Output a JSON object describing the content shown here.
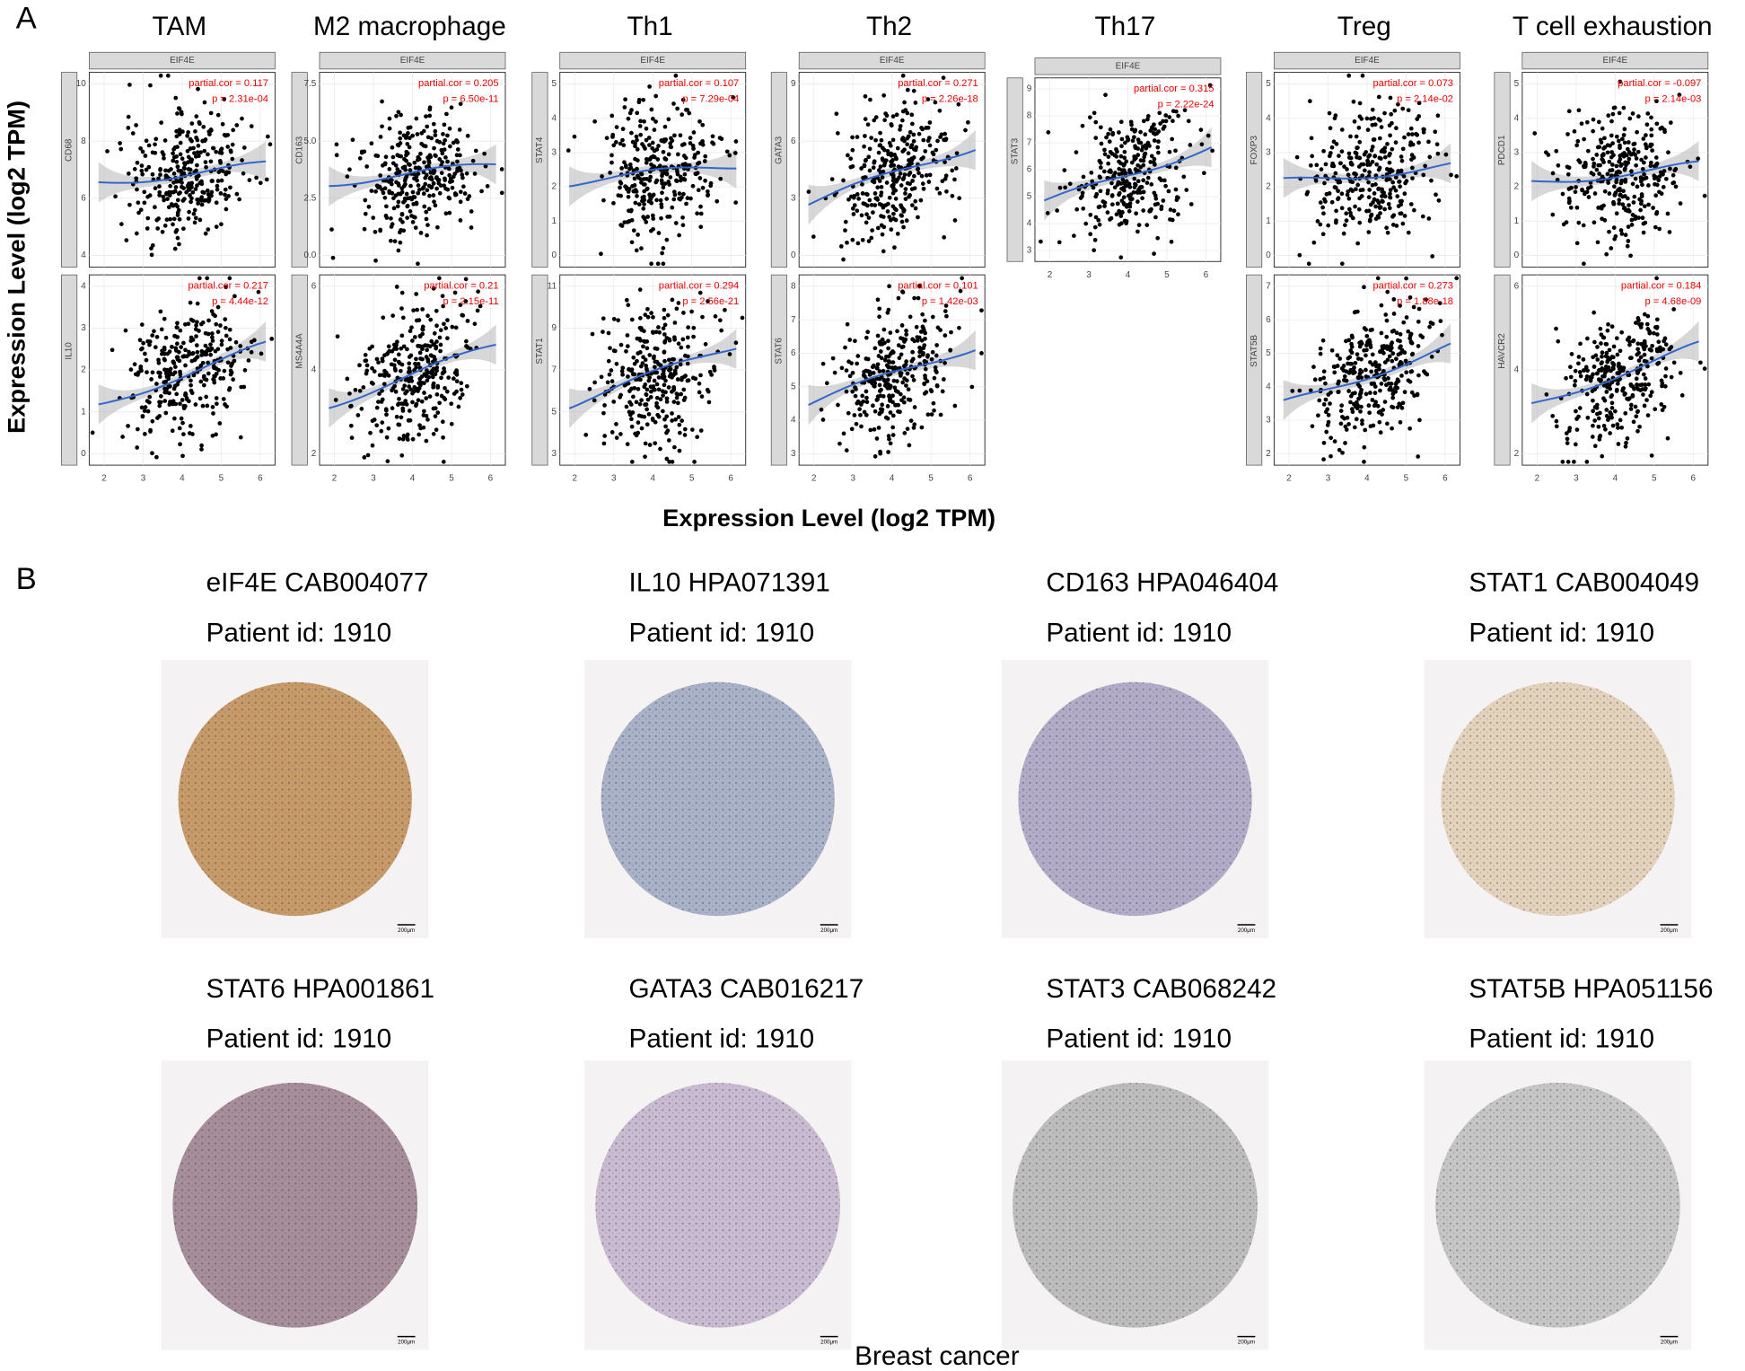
{
  "panel_a": {
    "label": "A",
    "y_axis_label": "Expression Level (log2 TPM)",
    "x_axis_label": "Expression Level (log2 TPM)",
    "strip": "EIF4E",
    "x_ticks": [
      "2",
      "3",
      "4",
      "5",
      "6"
    ],
    "groups": [
      {
        "title": "TAM",
        "plots": [
          {
            "gene": "CD68",
            "cor": "partial.cor = 0.117",
            "p": "p = 2.31e-04",
            "y_ticks": [
              "4",
              "6",
              "8",
              "10"
            ]
          },
          {
            "gene": "IL10",
            "cor": "partial.cor = 0.217",
            "p": "p = 4.44e-12",
            "y_ticks": [
              "0",
              "1",
              "2",
              "3",
              "4"
            ]
          }
        ]
      },
      {
        "title": "M2 macrophage",
        "plots": [
          {
            "gene": "CD163",
            "cor": "partial.cor = 0.205",
            "p": "p = 6.50e-11",
            "y_ticks": [
              "0.0",
              "2.5",
              "5.0",
              "7.5"
            ]
          },
          {
            "gene": "MS4A4A",
            "cor": "partial.cor = 0.21",
            "p": "p = 2.15e-11",
            "y_ticks": [
              "2",
              "4",
              "6"
            ]
          }
        ]
      },
      {
        "title": "Th1",
        "plots": [
          {
            "gene": "STAT4",
            "cor": "partial.cor = 0.107",
            "p": "p = 7.29e-04",
            "y_ticks": [
              "0",
              "1",
              "2",
              "3",
              "4",
              "5"
            ]
          },
          {
            "gene": "STAT1",
            "cor": "partial.cor = 0.294",
            "p": "p = 2.56e-21",
            "y_ticks": [
              "3",
              "5",
              "7",
              "9",
              "11"
            ]
          }
        ]
      },
      {
        "title": "Th2",
        "plots": [
          {
            "gene": "GATA3",
            "cor": "partial.cor = 0.271",
            "p": "p = 2.26e-18",
            "y_ticks": [
              "0",
              "3",
              "6",
              "9"
            ]
          },
          {
            "gene": "STAT6",
            "cor": "partial.cor = 0.101",
            "p": "p = 1.42e-03",
            "y_ticks": [
              "3",
              "4",
              "5",
              "6",
              "7",
              "8"
            ]
          }
        ]
      },
      {
        "title": "Th17",
        "plots": [
          {
            "gene": "STAT3",
            "cor": "partial.cor = 0.315",
            "p": "p = 2.22e-24",
            "y_ticks": [
              "3",
              "4",
              "5",
              "6",
              "7",
              "8",
              "9"
            ]
          }
        ]
      },
      {
        "title": "Treg",
        "plots": [
          {
            "gene": "FOXP3",
            "cor": "partial.cor = 0.073",
            "p": "p = 2.14e-02",
            "y_ticks": [
              "0",
              "1",
              "2",
              "3",
              "4",
              "5"
            ]
          },
          {
            "gene": "STAT5B",
            "cor": "partial.cor = 0.273",
            "p": "p = 1.88e-18",
            "y_ticks": [
              "2",
              "3",
              "4",
              "5",
              "6",
              "7"
            ]
          }
        ]
      },
      {
        "title": "T cell exhaustion",
        "plots": [
          {
            "gene": "PDCD1",
            "cor": "partial.cor = -0.097",
            "p": "p = 2.14e-03",
            "y_ticks": [
              "0",
              "1",
              "2",
              "3",
              "4",
              "5"
            ]
          },
          {
            "gene": "HAVCR2",
            "cor": "partial.cor = 0.184",
            "p": "p = 4.68e-09",
            "y_ticks": [
              "2",
              "4",
              "6"
            ]
          }
        ]
      }
    ]
  },
  "panel_b": {
    "label": "B",
    "caption": "Breast cancer",
    "scale_bar": "200μm",
    "cores": [
      {
        "antibody": "eIF4E  CAB004077",
        "patient": "Patient id: 1910"
      },
      {
        "antibody": "IL10 HPA071391",
        "patient": "Patient id: 1910"
      },
      {
        "antibody": "CD163 HPA046404",
        "patient": "Patient id: 1910"
      },
      {
        "antibody": "STAT1 CAB004049",
        "patient": "Patient id: 1910"
      },
      {
        "antibody": "STAT6 HPA001861",
        "patient": "Patient id: 1910"
      },
      {
        "antibody": "GATA3 CAB016217",
        "patient": "Patient id: 1910"
      },
      {
        "antibody": "STAT3 CAB068242",
        "patient": "Patient id: 1910"
      },
      {
        "antibody": "STAT5B HPA051156",
        "patient": "Patient id: 1910"
      }
    ]
  }
}
